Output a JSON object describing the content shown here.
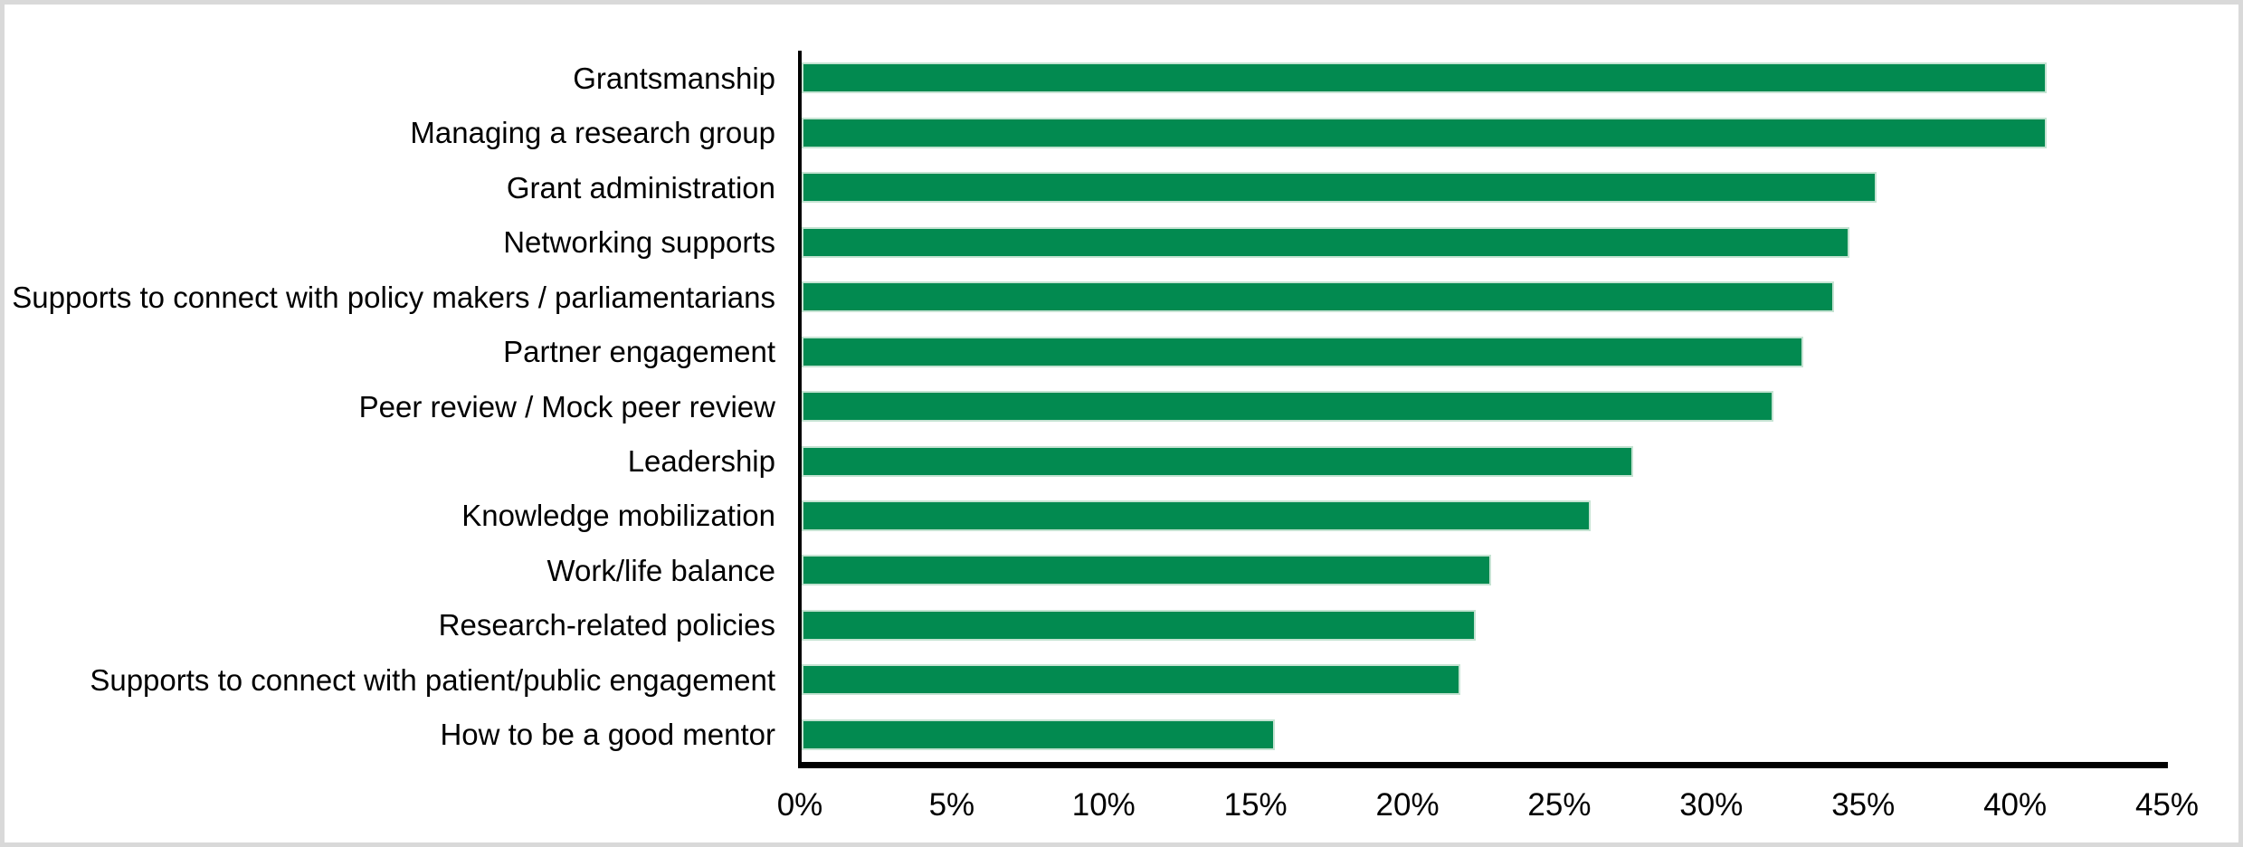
{
  "window": {
    "background": "#ffffff",
    "frame_border_color": "#d9d9d9"
  },
  "chart_data": {
    "type": "bar",
    "orientation": "horizontal",
    "title": "",
    "xlabel": "",
    "ylabel": "",
    "grid": false,
    "legend": false,
    "xlim": [
      0,
      45
    ],
    "categories": [
      "Grantsmanship",
      "Managing a research group",
      "Grant administration",
      "Networking supports",
      "Supports to connect with policy makers / parliamentarians",
      "Partner engagement",
      "Peer review / Mock peer review",
      "Leadership",
      "Knowledge mobilization",
      "Work/life balance",
      "Research-related policies",
      "Supports to connect with patient/public engagement",
      "How to be a good mentor"
    ],
    "values": [
      41,
      41,
      35.4,
      34.5,
      34,
      33,
      32,
      27.4,
      26,
      22.7,
      22.2,
      21.7,
      15.6
    ],
    "value_unit": "%",
    "x_ticks": [
      "0%",
      "5%",
      "10%",
      "15%",
      "20%",
      "25%",
      "30%",
      "35%",
      "40%",
      "45%"
    ],
    "x_tick_values": [
      0,
      5,
      10,
      15,
      20,
      25,
      30,
      35,
      40,
      45
    ],
    "bar_color": "#028a50",
    "bar_border_color": "#c5e3d2",
    "axis_color": "#000000",
    "text_color": "#000000"
  }
}
